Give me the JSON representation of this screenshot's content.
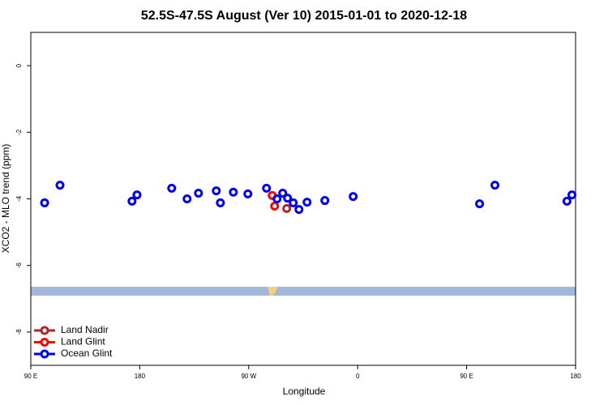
{
  "chart_data": {
    "type": "scatter",
    "title": "52.5S-47.5S August (Ver 10)   2015-01-01 to 2020-12-18",
    "xlabel": "Longitude",
    "ylabel": "XCO2 - MLO trend (ppm)",
    "xlim": [
      90,
      540
    ],
    "ylim": [
      -9,
      1
    ],
    "xticks": [
      {
        "value": 90,
        "label": "90 E"
      },
      {
        "value": 180,
        "label": "180"
      },
      {
        "value": 270,
        "label": "90 W"
      },
      {
        "value": 360,
        "label": "0"
      },
      {
        "value": 450,
        "label": "90 E"
      },
      {
        "value": 540,
        "label": "180"
      }
    ],
    "yticks": [
      -8,
      -6,
      -4,
      -2,
      0
    ],
    "legend": "bottom-left",
    "series": [
      {
        "name": "Land Nadir",
        "color": "#a52a2a",
        "x": [
          301.4
        ],
        "values": [
          -4.29
        ]
      },
      {
        "name": "Land Glint",
        "color": "#ff0000",
        "x": [
          289.4,
          291.4
        ],
        "values": [
          -3.9,
          -4.22
        ]
      },
      {
        "name": "Ocean Glint",
        "color": "#0000ee",
        "x": [
          101.4,
          114.1,
          173.6,
          177.7,
          206.4,
          219.1,
          228.5,
          243.2,
          246.6,
          257.3,
          269.3,
          284.7,
          293.4,
          298.1,
          302.1,
          306.8,
          311.5,
          318.2,
          332.9,
          356.3,
          460.7,
          473.4,
          532.9,
          537.0
        ],
        "values": [
          -4.12,
          -3.59,
          -4.07,
          -3.88,
          -3.68,
          -4.0,
          -3.83,
          -3.76,
          -4.12,
          -3.8,
          -3.85,
          -3.68,
          -4.0,
          -3.83,
          -3.98,
          -4.12,
          -4.32,
          -4.1,
          -4.05,
          -3.93,
          -4.15,
          -3.59,
          -4.07,
          -3.88
        ]
      }
    ]
  }
}
